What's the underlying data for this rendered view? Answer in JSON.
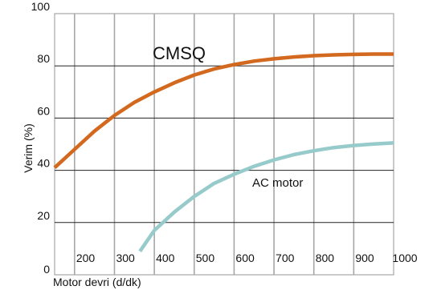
{
  "chart_data": {
    "type": "line",
    "title": "",
    "xlabel": "Motor devri (d/dk)",
    "ylabel": "Verim (%)",
    "xlim": [
      150,
      1000
    ],
    "ylim": [
      0,
      100
    ],
    "x_ticks": [
      "200",
      "300",
      "400",
      "500",
      "600",
      "700",
      "800",
      "900",
      "1000"
    ],
    "y_ticks": [
      "0",
      "20",
      "40",
      "60",
      "80",
      "100"
    ],
    "grid": true,
    "series": [
      {
        "name": "CMSQ",
        "color": "#D2691E",
        "points": [
          [
            150,
            41
          ],
          [
            200,
            48
          ],
          [
            250,
            55
          ],
          [
            300,
            61
          ],
          [
            350,
            66
          ],
          [
            400,
            70
          ],
          [
            450,
            73.5
          ],
          [
            500,
            76.5
          ],
          [
            550,
            78.8
          ],
          [
            600,
            80.5
          ],
          [
            650,
            81.8
          ],
          [
            700,
            82.7
          ],
          [
            750,
            83.4
          ],
          [
            800,
            83.9
          ],
          [
            850,
            84.2
          ],
          [
            900,
            84.4
          ],
          [
            950,
            84.5
          ],
          [
            1000,
            84.5
          ]
        ]
      },
      {
        "name": "AC motor",
        "color": "#97CACA",
        "points": [
          [
            364,
            9
          ],
          [
            400,
            17
          ],
          [
            450,
            24
          ],
          [
            500,
            30
          ],
          [
            550,
            35
          ],
          [
            600,
            38.5
          ],
          [
            650,
            41.5
          ],
          [
            700,
            44
          ],
          [
            750,
            46
          ],
          [
            800,
            47.5
          ],
          [
            850,
            48.7
          ],
          [
            900,
            49.5
          ],
          [
            950,
            50.1
          ],
          [
            1000,
            50.5
          ]
        ]
      }
    ]
  }
}
